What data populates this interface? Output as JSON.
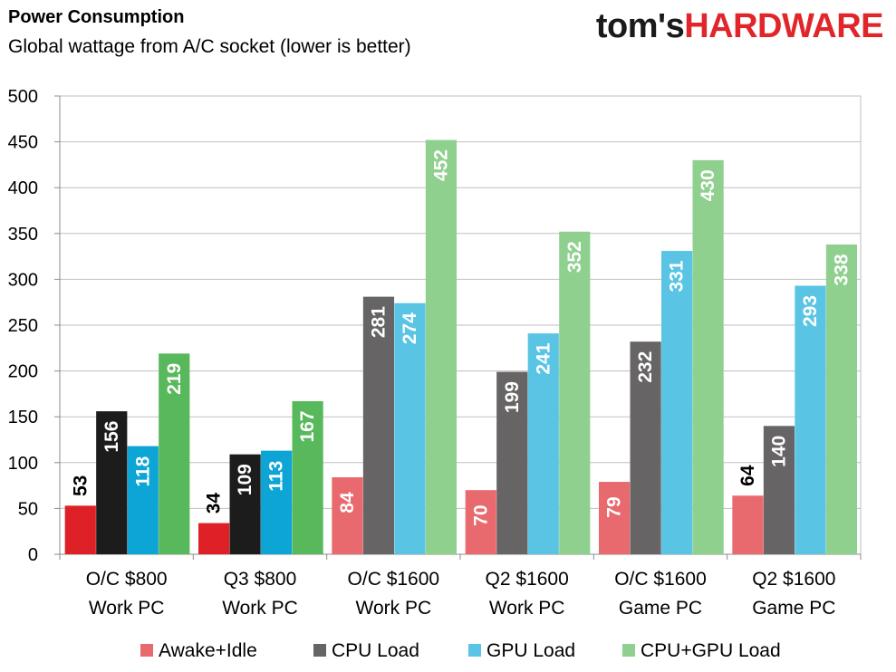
{
  "logo": {
    "part1": "tom's",
    "part2": "HARDWARE"
  },
  "chart_data": {
    "type": "bar",
    "title": "Power Consumption",
    "subtitle": "Global wattage from A/C socket (lower is better)",
    "categories": [
      [
        "O/C $800",
        "Work PC"
      ],
      [
        "Q3 $800",
        "Work PC"
      ],
      [
        "O/C $1600",
        "Work PC"
      ],
      [
        "Q2 $1600",
        "Work PC"
      ],
      [
        "O/C $1600",
        "Game PC"
      ],
      [
        "Q2 $1600",
        "Game PC"
      ]
    ],
    "series": [
      {
        "name": "Awake+Idle",
        "values": [
          53,
          34,
          84,
          70,
          79,
          64
        ]
      },
      {
        "name": "CPU Load",
        "values": [
          156,
          109,
          281,
          199,
          232,
          140
        ]
      },
      {
        "name": "GPU Load",
        "values": [
          118,
          113,
          274,
          241,
          331,
          293
        ]
      },
      {
        "name": "CPU+GPU Load",
        "values": [
          219,
          167,
          452,
          352,
          430,
          338
        ]
      }
    ],
    "colors_dark": [
      "#dd2127",
      "#1c1c1c",
      "#0da4d6",
      "#58b85c"
    ],
    "colors_light": [
      "#e96a6e",
      "#666465",
      "#5ac4e5",
      "#8fd08f"
    ],
    "ylim": [
      0,
      500
    ],
    "yticks": [
      0,
      50,
      100,
      150,
      200,
      250,
      300,
      350,
      400,
      450,
      500
    ],
    "grid": true,
    "legend_position": "bottom"
  }
}
